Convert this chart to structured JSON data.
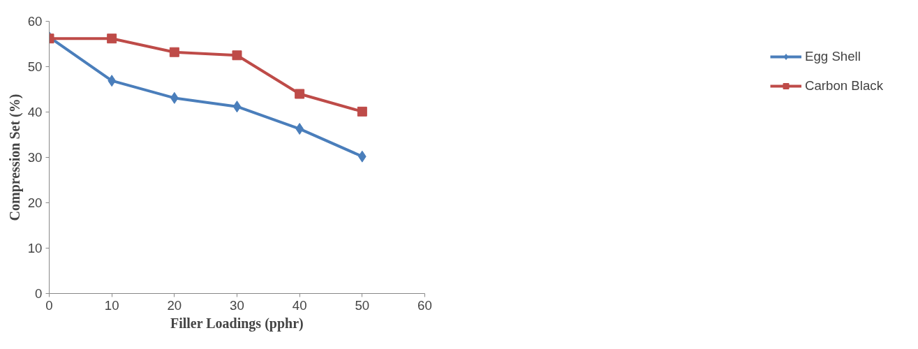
{
  "chart_data": {
    "type": "line",
    "xlabel": "Filler Loadings (pphr)",
    "ylabel": "Compression Set (%)",
    "x": [
      0,
      10,
      20,
      30,
      40,
      50
    ],
    "series": [
      {
        "name": "Egg Shell",
        "color": "#4a7ebb",
        "marker": "diamond",
        "values": [
          56.5,
          46.9,
          43.1,
          41.2,
          36.3,
          30.2
        ]
      },
      {
        "name": "Carbon Black",
        "color": "#be4b48",
        "marker": "square",
        "values": [
          56.2,
          56.2,
          53.2,
          52.5,
          44.0,
          40.1
        ]
      }
    ],
    "xlim": [
      0,
      60
    ],
    "xticks": [
      0,
      10,
      20,
      30,
      40,
      50,
      60
    ],
    "ylim": [
      0,
      60
    ],
    "yticks": [
      0,
      10,
      20,
      30,
      40,
      50,
      60
    ],
    "grid": false,
    "legend": "right",
    "line_style": "solid"
  }
}
